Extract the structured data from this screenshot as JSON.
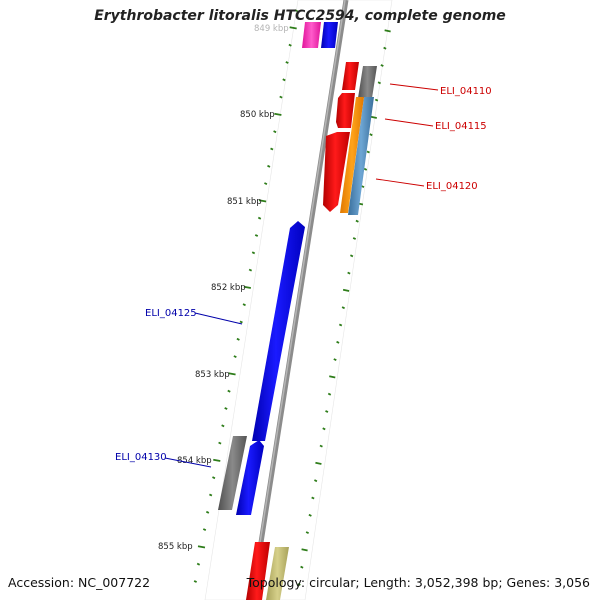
{
  "title": "Erythrobacter litoralis HTCC2594, complete genome",
  "footer": {
    "accession": "Accession: NC_007722",
    "summary": "Topology: circular; Length: 3,052,398 bp; Genes: 3,056"
  },
  "ticks": [
    {
      "label": "849 kbp",
      "faded": true
    },
    {
      "label": "850 kbp"
    },
    {
      "label": "851 kbp"
    },
    {
      "label": "852 kbp"
    },
    {
      "label": "853 kbp"
    },
    {
      "label": "854 kbp"
    },
    {
      "label": "855 kbp"
    }
  ],
  "gene_labels": [
    {
      "text": "ELI_04110",
      "color": "#cc0000"
    },
    {
      "text": "ELI_04115",
      "color": "#cc0000"
    },
    {
      "text": "ELI_04120",
      "color": "#cc0000"
    },
    {
      "text": "ELI_04125",
      "color": "#0000aa"
    },
    {
      "text": "ELI_04130",
      "color": "#0000aa"
    }
  ],
  "colors": {
    "backbone": "#8c8c8c",
    "tick": "#2e7d1a",
    "forward_cds": "#ee0000",
    "reverse_cds": "#0000ee",
    "gray_feature": "#6e6e6e",
    "orange_feature": "#ff8c00",
    "steelblue_feature": "#4682b4",
    "pink_feature": "#ff2bb4",
    "khaki_feature": "#bdb76b"
  }
}
